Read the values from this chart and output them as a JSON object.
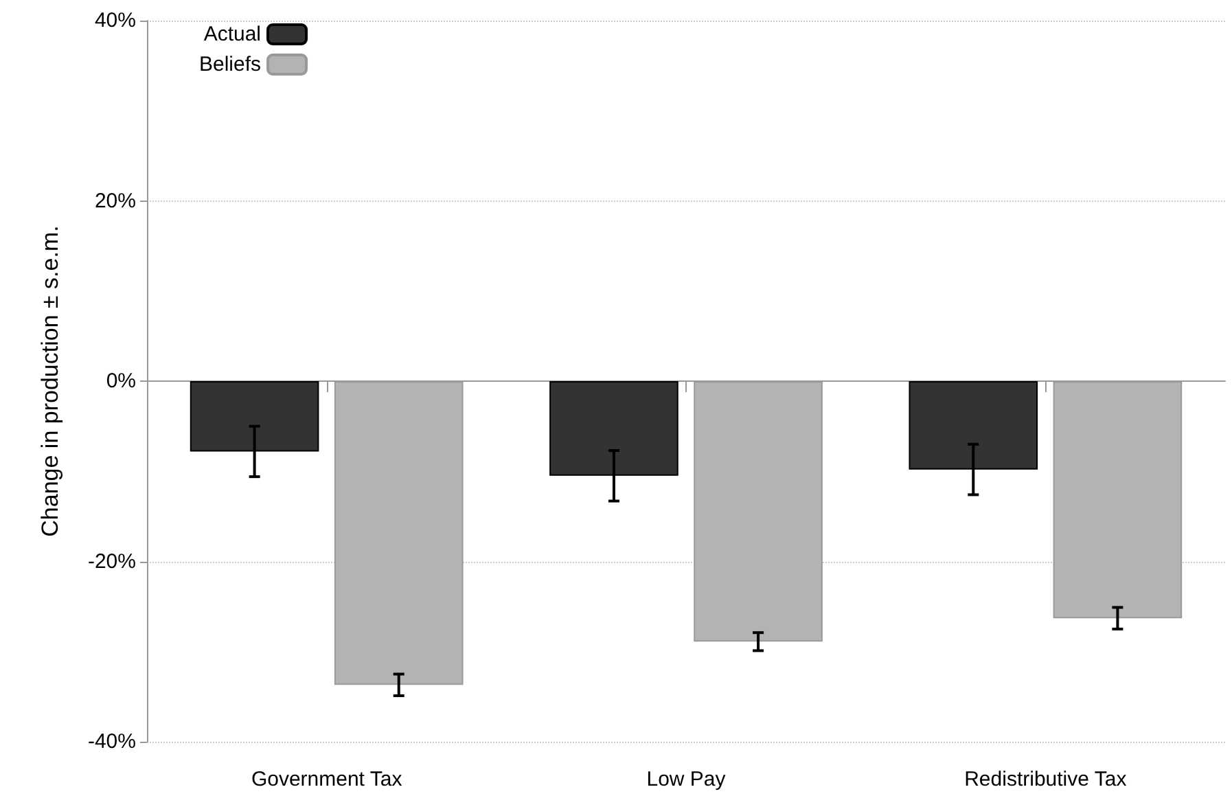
{
  "chart_data": {
    "type": "bar",
    "ylabel": "Change in production ± s.e.m.",
    "categories": [
      "Government Tax",
      "Low Pay",
      "Redistributive Tax"
    ],
    "series": [
      {
        "name": "Actual",
        "color": "#333333",
        "values": [
          -7.8,
          -10.5,
          -9.8
        ],
        "errors": [
          2.8,
          2.8,
          2.8
        ]
      },
      {
        "name": "Beliefs",
        "color": "#b3b3b3",
        "values": [
          -33.7,
          -28.9,
          -26.3
        ],
        "errors": [
          1.2,
          1.0,
          1.2
        ]
      }
    ],
    "ylim": [
      -40,
      40
    ],
    "yticks": [
      {
        "value": -40,
        "label": "-40%"
      },
      {
        "value": -20,
        "label": "-20%"
      },
      {
        "value": 0,
        "label": "0%"
      },
      {
        "value": 20,
        "label": "20%"
      },
      {
        "value": 40,
        "label": "40%"
      }
    ],
    "grid": "y",
    "legend": "top left"
  }
}
